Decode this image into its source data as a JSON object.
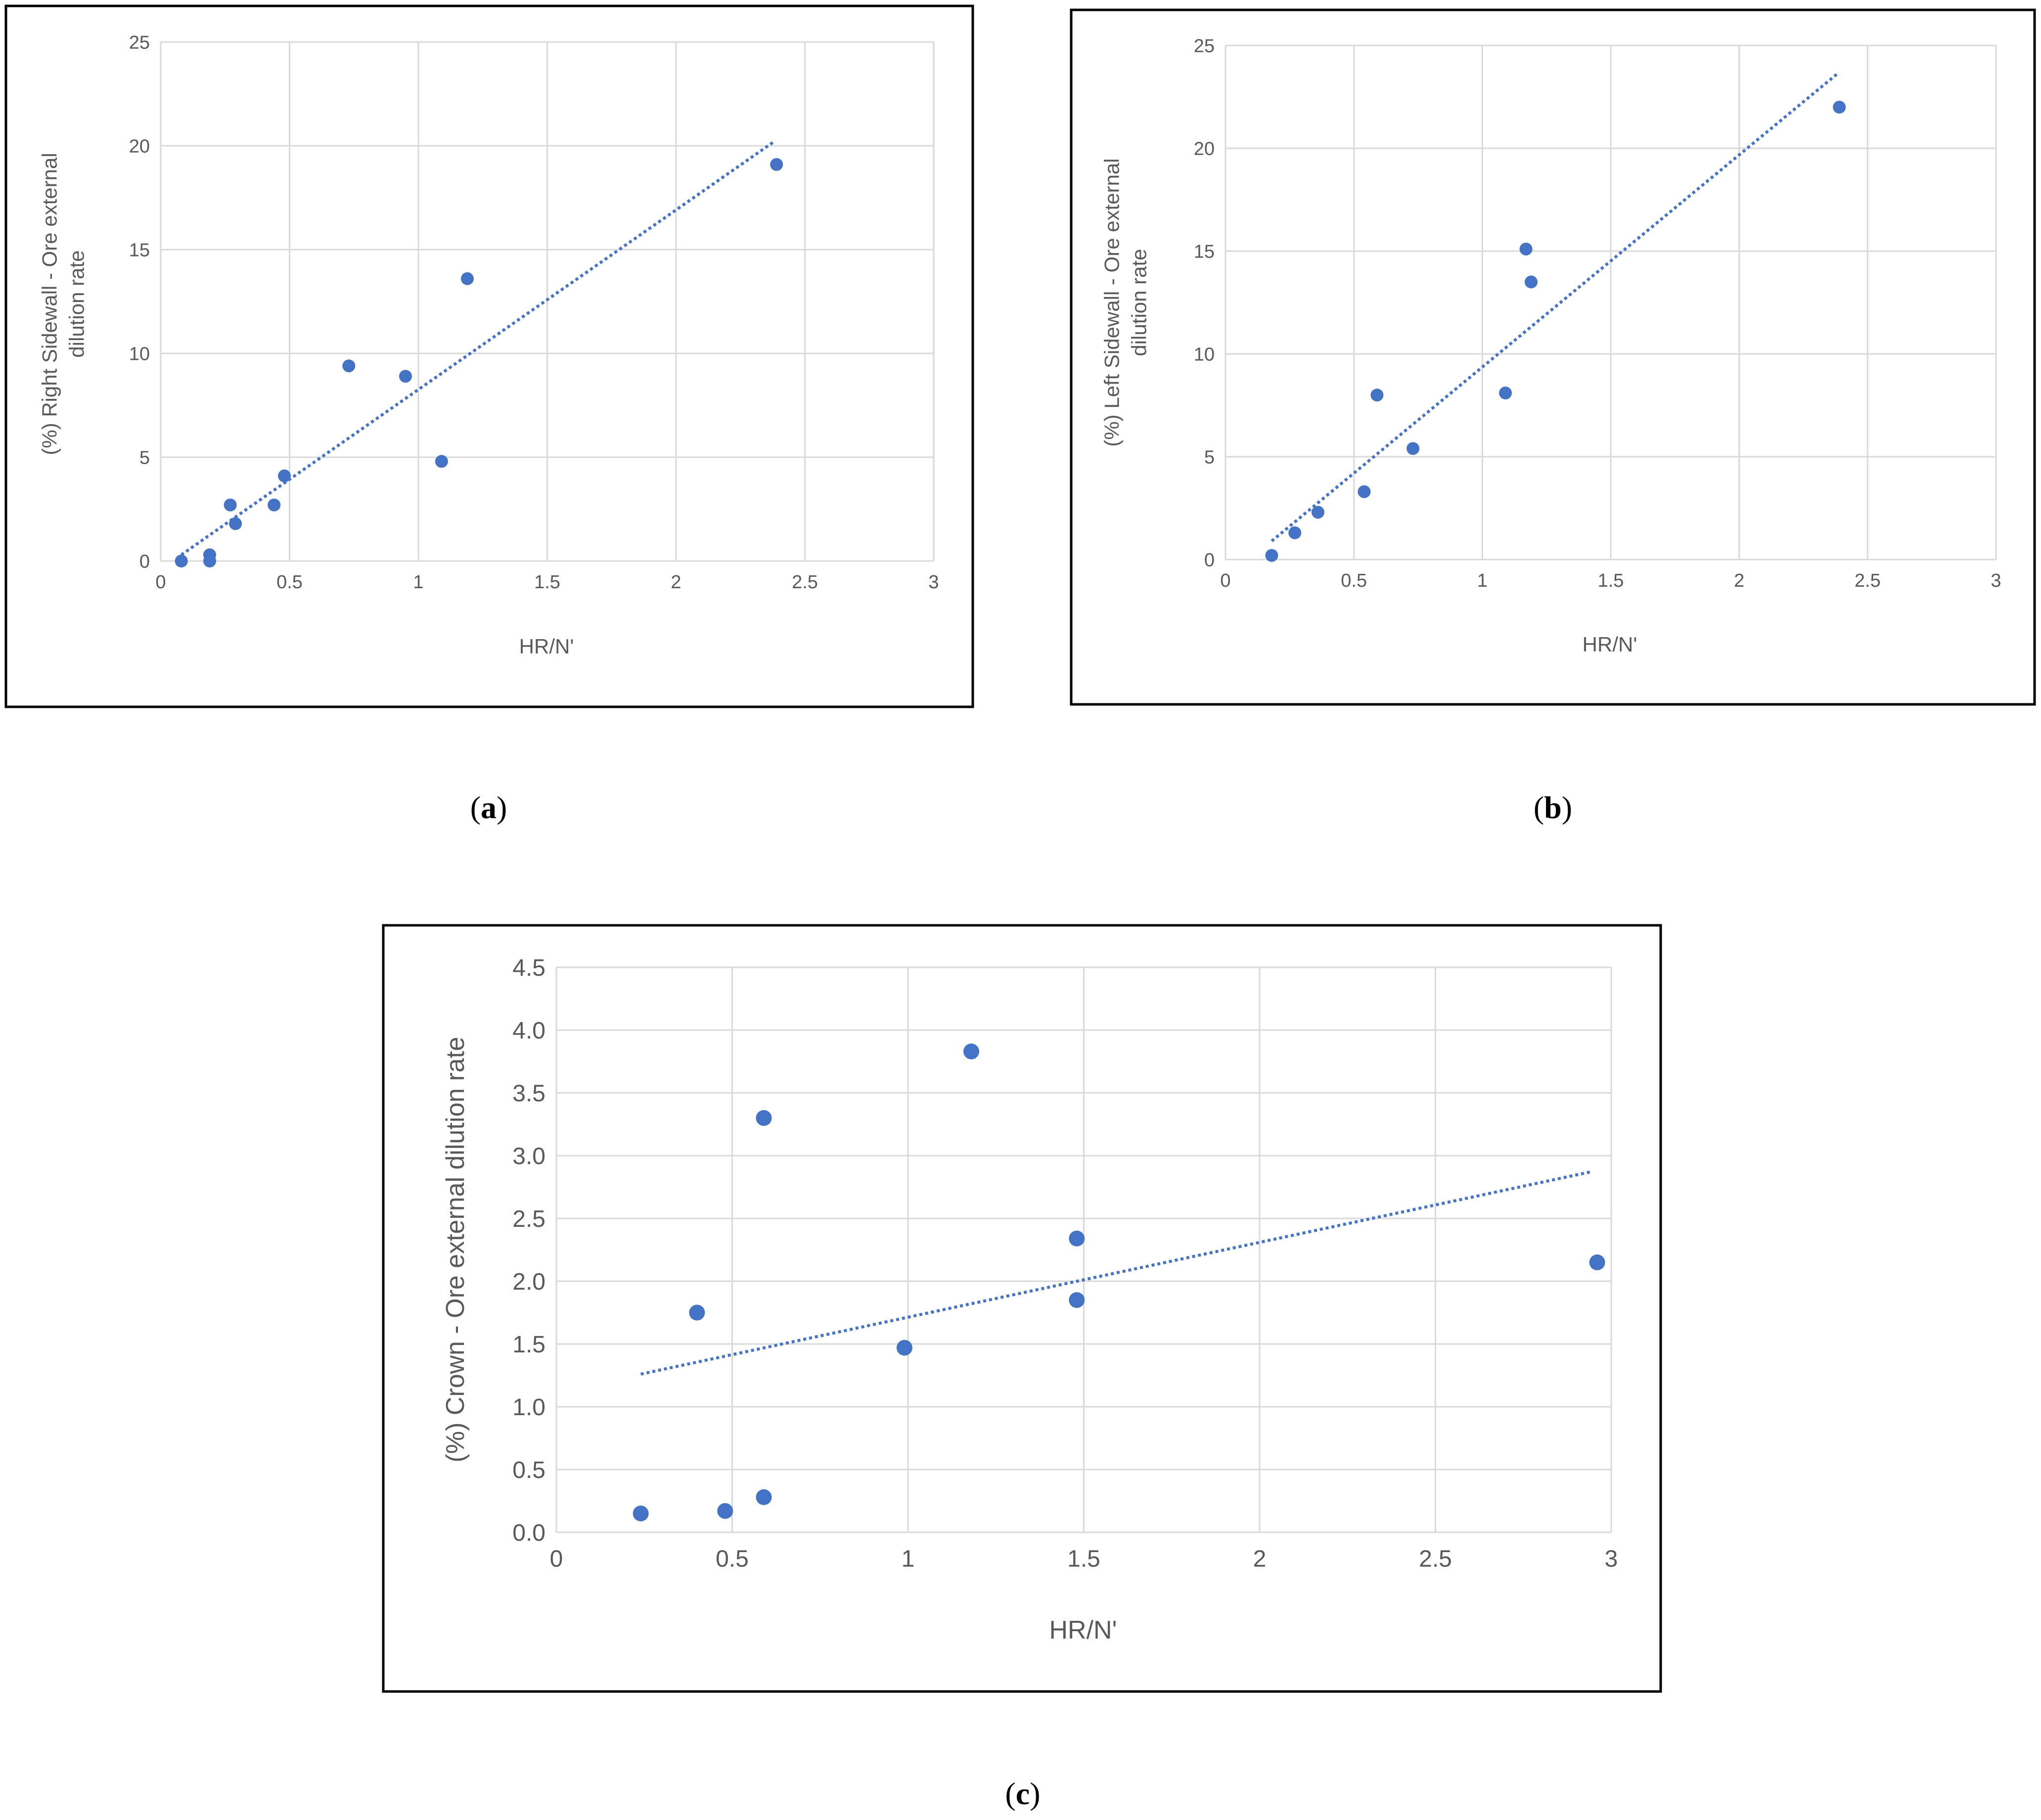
{
  "colors": {
    "marker": "#4472C4",
    "trendline": "#4472C4",
    "gridline": "#D9D9D9",
    "axis_text": "#595959",
    "frame": "#000000"
  },
  "captions": [
    {
      "open": "(",
      "letter": "a",
      "close": ")"
    },
    {
      "open": "(",
      "letter": "b",
      "close": ")"
    },
    {
      "open": "(",
      "letter": "c",
      "close": ")"
    }
  ],
  "chart_data": [
    {
      "type": "scatter",
      "panel": "a",
      "title": "",
      "xlabel": "HR/N'",
      "ylabel_lines": [
        "(%) Right Sidewall - Ore external",
        "dilution rate"
      ],
      "xlim": [
        0,
        3
      ],
      "ylim": [
        0,
        25
      ],
      "x_ticks": [
        0,
        0.5,
        1,
        1.5,
        2,
        2.5,
        3
      ],
      "x_tick_labels": [
        "0",
        "0.5",
        "1",
        "1.5",
        "2",
        "2.5",
        "3"
      ],
      "y_ticks": [
        0,
        5,
        10,
        15,
        20,
        25
      ],
      "y_tick_labels": [
        "0",
        "5",
        "10",
        "15",
        "20",
        "25"
      ],
      "grid": true,
      "marker": "circle",
      "trendline": {
        "style": "dotted-linear",
        "x": [
          0.08,
          2.38
        ],
        "y": [
          0.3,
          20.2
        ]
      },
      "points": [
        {
          "x": 0.08,
          "y": 0.0
        },
        {
          "x": 0.19,
          "y": 0.3
        },
        {
          "x": 0.19,
          "y": 0.0
        },
        {
          "x": 0.27,
          "y": 2.7
        },
        {
          "x": 0.29,
          "y": 1.8
        },
        {
          "x": 0.44,
          "y": 2.7
        },
        {
          "x": 0.48,
          "y": 4.1
        },
        {
          "x": 0.73,
          "y": 9.4
        },
        {
          "x": 0.95,
          "y": 8.9
        },
        {
          "x": 1.09,
          "y": 4.8
        },
        {
          "x": 1.19,
          "y": 13.6
        },
        {
          "x": 2.39,
          "y": 19.1
        }
      ]
    },
    {
      "type": "scatter",
      "panel": "b",
      "title": "",
      "xlabel": "HR/N'",
      "ylabel_lines": [
        "(%) Left Sidewall - Ore external",
        "dilution rate"
      ],
      "xlim": [
        0,
        3
      ],
      "ylim": [
        0,
        25
      ],
      "x_ticks": [
        0,
        0.5,
        1,
        1.5,
        2,
        2.5,
        3
      ],
      "x_tick_labels": [
        "0",
        "0.5",
        "1",
        "1.5",
        "2",
        "2.5",
        "3"
      ],
      "y_ticks": [
        0,
        5,
        10,
        15,
        20,
        25
      ],
      "y_tick_labels": [
        "0",
        "5",
        "10",
        "15",
        "20",
        "25"
      ],
      "grid": true,
      "marker": "circle",
      "trendline": {
        "style": "dotted-linear",
        "x": [
          0.18,
          2.38
        ],
        "y": [
          0.9,
          23.6
        ]
      },
      "points": [
        {
          "x": 0.18,
          "y": 0.2
        },
        {
          "x": 0.27,
          "y": 1.3
        },
        {
          "x": 0.36,
          "y": 2.3
        },
        {
          "x": 0.54,
          "y": 3.3
        },
        {
          "x": 0.59,
          "y": 8.0
        },
        {
          "x": 0.73,
          "y": 5.4
        },
        {
          "x": 1.09,
          "y": 8.1
        },
        {
          "x": 1.17,
          "y": 15.1
        },
        {
          "x": 1.19,
          "y": 13.5
        },
        {
          "x": 2.39,
          "y": 22.0
        }
      ]
    },
    {
      "type": "scatter",
      "panel": "c",
      "title": "",
      "xlabel": "HR/N'",
      "ylabel_lines": [
        "(%) Crown - Ore external dilution rate"
      ],
      "xlim": [
        0,
        3
      ],
      "ylim": [
        0,
        4.5
      ],
      "x_ticks": [
        0,
        0.5,
        1,
        1.5,
        2,
        2.5,
        3
      ],
      "x_tick_labels": [
        "0",
        "0.5",
        "1",
        "1.5",
        "2",
        "2.5",
        "3"
      ],
      "y_ticks": [
        0,
        0.5,
        1,
        1.5,
        2,
        2.5,
        3,
        3.5,
        4,
        4.5
      ],
      "y_tick_labels": [
        "0.0",
        "0.5",
        "1.0",
        "1.5",
        "2.0",
        "2.5",
        "3.0",
        "3.5",
        "4.0",
        "4.5"
      ],
      "grid": true,
      "marker": "circle",
      "trendline": {
        "style": "dotted-linear",
        "x": [
          0.24,
          2.94
        ],
        "y": [
          1.26,
          2.87
        ]
      },
      "points": [
        {
          "x": 0.24,
          "y": 0.15
        },
        {
          "x": 0.4,
          "y": 1.75
        },
        {
          "x": 0.48,
          "y": 0.17
        },
        {
          "x": 0.59,
          "y": 3.3
        },
        {
          "x": 0.59,
          "y": 0.28
        },
        {
          "x": 0.99,
          "y": 1.47
        },
        {
          "x": 1.18,
          "y": 3.83
        },
        {
          "x": 1.48,
          "y": 2.34
        },
        {
          "x": 1.48,
          "y": 1.85
        },
        {
          "x": 2.96,
          "y": 2.15
        }
      ]
    }
  ]
}
